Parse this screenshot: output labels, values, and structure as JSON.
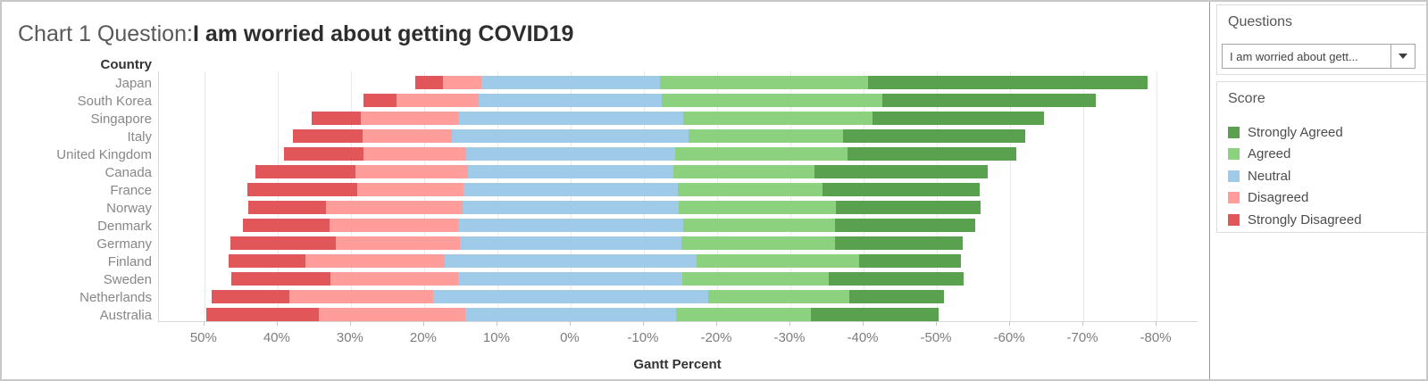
{
  "title": {
    "prefix": "Chart 1 Question:",
    "question": "I am worried about getting COVID19"
  },
  "chart_data": {
    "type": "bar",
    "variant": "diverging-stacked-horizontal",
    "title": "Chart 1 Question: I am worried about getting COVID19",
    "xlabel": "Gantt Percent",
    "ylabel": "Country",
    "x_axis_reversed": true,
    "xlim": [
      56.2,
      -85.6
    ],
    "x_tick_values": [
      50,
      40,
      30,
      20,
      10,
      0,
      -10,
      -20,
      -30,
      -40,
      -50,
      -60,
      -70,
      -80
    ],
    "x_tick_labels": [
      "50%",
      "40%",
      "30%",
      "20%",
      "10%",
      "0%",
      "-10%",
      "-20%",
      "-30%",
      "-40%",
      "-50%",
      "-60%",
      "-70%",
      "-80%"
    ],
    "grid": true,
    "legend_position": "right",
    "neutral_centered_at_zero": true,
    "categories": [
      "Japan",
      "South Korea",
      "Singapore",
      "Italy",
      "United Kingdom",
      "Canada",
      "France",
      "Norway",
      "Denmark",
      "Germany",
      "Finland",
      "Sweden",
      "Netherlands",
      "Australia"
    ],
    "series": [
      {
        "name": "Strongly Disagreed",
        "color": "#e15759",
        "values": [
          3.8,
          4.5,
          6.7,
          9.5,
          10.8,
          13.6,
          15.0,
          10.6,
          11.8,
          14.5,
          10.5,
          13.5,
          10.6,
          15.4
        ]
      },
      {
        "name": "Disagreed",
        "color": "#ff9d9a",
        "values": [
          5.2,
          11.3,
          13.3,
          12.3,
          14.0,
          15.4,
          14.5,
          18.7,
          17.6,
          16.9,
          19.1,
          17.5,
          19.6,
          20.0
        ]
      },
      {
        "name": "Neutral",
        "color": "#a0cbe8",
        "values": [
          24.4,
          25.0,
          30.8,
          32.3,
          28.6,
          28.0,
          29.2,
          29.5,
          30.7,
          30.2,
          34.3,
          30.6,
          37.6,
          28.7
        ]
      },
      {
        "name": "Agreed",
        "color": "#8cd17d",
        "values": [
          28.4,
          30.0,
          25.8,
          21.1,
          23.5,
          19.3,
          19.8,
          21.5,
          20.7,
          21.0,
          22.2,
          20.0,
          19.3,
          18.5
        ]
      },
      {
        "name": "Strongly Agreed",
        "color": "#59a14f",
        "values": [
          38.2,
          29.2,
          23.4,
          24.8,
          23.1,
          23.7,
          21.5,
          19.7,
          19.2,
          17.4,
          13.9,
          18.4,
          12.9,
          17.4
        ]
      }
    ]
  },
  "panels": {
    "questions": {
      "title": "Questions",
      "dropdown_value": "I am worried about gett..."
    },
    "score": {
      "title": "Score",
      "items": [
        {
          "label": "Strongly Agreed",
          "color": "#59a14f"
        },
        {
          "label": "Agreed",
          "color": "#8cd17d"
        },
        {
          "label": "Neutral",
          "color": "#a0cbe8"
        },
        {
          "label": "Disagreed",
          "color": "#ff9d9a"
        },
        {
          "label": "Strongly Disagreed",
          "color": "#e15759"
        }
      ]
    }
  }
}
